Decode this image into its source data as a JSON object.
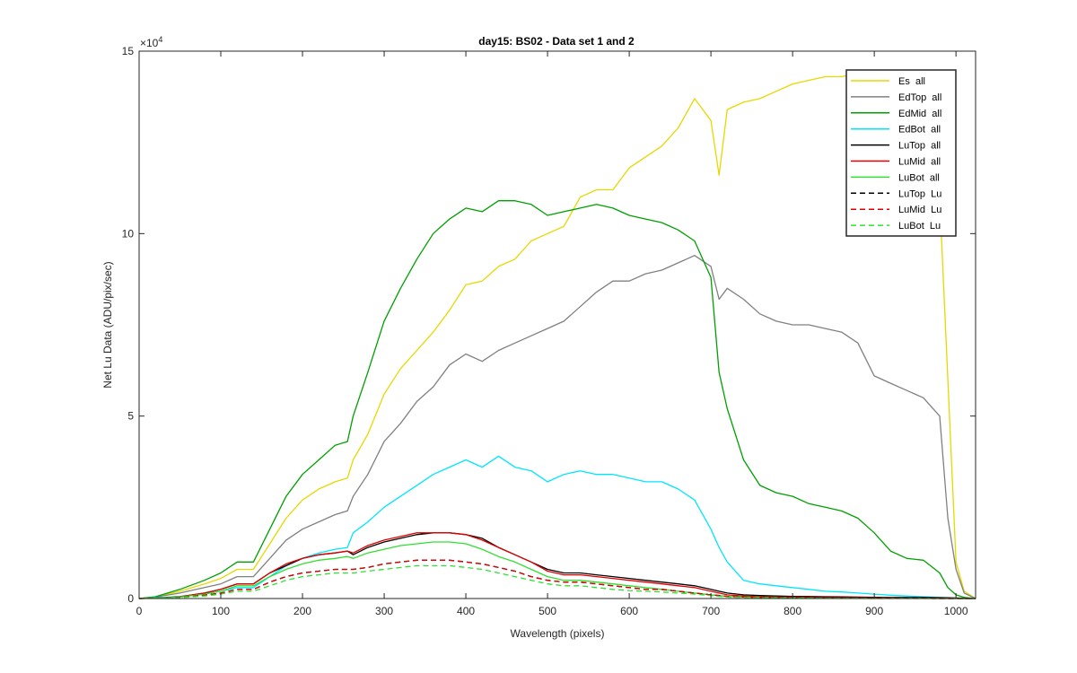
{
  "chart_data": {
    "type": "line",
    "title": "day15: BS02 - Data set 1 and 2",
    "xlabel": "Wavelength (pixels)",
    "ylabel": "Net Lu Data (ADU/pix/sec)",
    "y_exponent_label": "×10",
    "y_exponent_power": "4",
    "xlim": [
      0,
      1024
    ],
    "ylim": [
      0,
      150000
    ],
    "xticks": [
      0,
      100,
      200,
      300,
      400,
      500,
      600,
      700,
      800,
      900,
      1000
    ],
    "yticks": [
      0,
      50000,
      100000,
      150000
    ],
    "ytick_labels": [
      "0",
      "5",
      "10",
      "15"
    ],
    "legend_position": "top-right",
    "grid": false,
    "x": [
      0,
      20,
      50,
      80,
      100,
      120,
      140,
      160,
      180,
      200,
      220,
      240,
      255,
      262,
      280,
      300,
      320,
      340,
      360,
      380,
      400,
      420,
      440,
      460,
      480,
      500,
      520,
      540,
      560,
      580,
      600,
      620,
      640,
      660,
      680,
      700,
      710,
      720,
      740,
      760,
      780,
      800,
      820,
      840,
      860,
      880,
      900,
      920,
      940,
      960,
      980,
      990,
      1000,
      1010,
      1024
    ],
    "series": [
      {
        "name": "Es  all",
        "color": "#e6d800",
        "dash": "solid",
        "values": [
          0,
          500,
          2000,
          4000,
          5500,
          8000,
          8000,
          15000,
          22000,
          27000,
          30000,
          32000,
          33000,
          38000,
          45000,
          56000,
          63000,
          68000,
          73000,
          79000,
          86000,
          87000,
          91000,
          93000,
          98000,
          100000,
          102000,
          110000,
          112000,
          112000,
          118000,
          121000,
          124000,
          129000,
          137000,
          131000,
          116000,
          134000,
          136000,
          137000,
          139000,
          141000,
          142000,
          143000,
          143000,
          144000,
          142000,
          141000,
          140000,
          139000,
          110000,
          60000,
          10000,
          2000,
          0
        ]
      },
      {
        "name": "EdTop  all",
        "color": "#808080",
        "dash": "solid",
        "values": [
          0,
          400,
          1500,
          3000,
          4000,
          6000,
          6000,
          11000,
          16000,
          19000,
          21000,
          23000,
          24000,
          28000,
          34000,
          43000,
          48000,
          54000,
          58000,
          64000,
          67000,
          65000,
          68000,
          70000,
          72000,
          74000,
          76000,
          80000,
          84000,
          87000,
          87000,
          89000,
          90000,
          92000,
          94000,
          91000,
          82000,
          85000,
          82000,
          78000,
          76000,
          75000,
          75000,
          74000,
          73000,
          70000,
          61000,
          59000,
          57000,
          55000,
          50000,
          22000,
          8000,
          1500,
          0
        ]
      },
      {
        "name": "EdMid  all",
        "color": "#00a000",
        "dash": "solid",
        "values": [
          0,
          500,
          2500,
          5000,
          7000,
          10000,
          10000,
          19000,
          28000,
          34000,
          38000,
          42000,
          43000,
          50000,
          62000,
          76000,
          85000,
          93000,
          100000,
          104000,
          107000,
          106000,
          109000,
          109000,
          108000,
          105000,
          106000,
          107000,
          108000,
          107000,
          105000,
          104000,
          103000,
          101000,
          98000,
          88000,
          62000,
          52000,
          38000,
          31000,
          29000,
          28000,
          26000,
          25000,
          24000,
          22000,
          18000,
          13000,
          11000,
          10500,
          7000,
          3000,
          1000,
          300,
          0
        ]
      },
      {
        "name": "EdBot  all",
        "color": "#00e5ff",
        "dash": "solid",
        "values": [
          0,
          200,
          600,
          1300,
          2000,
          3000,
          3000,
          6000,
          9000,
          11000,
          12500,
          13500,
          14000,
          18000,
          21000,
          25000,
          28000,
          31000,
          34000,
          36000,
          38000,
          36000,
          39000,
          36000,
          35000,
          32000,
          34000,
          35000,
          34000,
          34000,
          33000,
          32000,
          32000,
          30000,
          27000,
          19000,
          14000,
          10000,
          5000,
          4000,
          3500,
          3000,
          2500,
          2000,
          1800,
          1500,
          1200,
          900,
          700,
          500,
          300,
          200,
          100,
          0,
          0
        ]
      },
      {
        "name": "LuTop  all",
        "color": "#000000",
        "dash": "solid",
        "values": [
          0,
          100,
          500,
          1500,
          2500,
          4000,
          4000,
          7000,
          9000,
          11000,
          12000,
          12500,
          13000,
          12000,
          14000,
          15500,
          16500,
          17500,
          18000,
          18000,
          17500,
          16500,
          14000,
          12000,
          10000,
          8000,
          7000,
          7000,
          6500,
          6000,
          5500,
          5000,
          4500,
          4000,
          3500,
          2500,
          2000,
          1500,
          1000,
          800,
          700,
          600,
          550,
          500,
          450,
          400,
          350,
          300,
          300,
          300,
          250,
          200,
          150,
          100,
          0
        ]
      },
      {
        "name": "LuMid  all",
        "color": "#e00000",
        "dash": "solid",
        "values": [
          0,
          100,
          500,
          1500,
          2500,
          4000,
          4000,
          7000,
          9500,
          11000,
          12000,
          12500,
          13000,
          12500,
          14500,
          16000,
          17000,
          18000,
          18000,
          18000,
          17500,
          16000,
          14000,
          12000,
          10000,
          7500,
          6500,
          6500,
          6000,
          5500,
          5000,
          4500,
          4000,
          3500,
          3000,
          2000,
          1500,
          1000,
          700,
          500,
          400,
          350,
          300,
          250,
          200,
          200,
          150,
          150,
          100,
          100,
          100,
          50,
          50,
          0,
          0
        ]
      },
      {
        "name": "LuBot  all",
        "color": "#30e030",
        "dash": "solid",
        "values": [
          0,
          100,
          400,
          1200,
          2000,
          3500,
          3500,
          6000,
          8000,
          9500,
          10500,
          11000,
          11500,
          11000,
          12500,
          13500,
          14500,
          15000,
          15500,
          15500,
          15000,
          13500,
          11500,
          10000,
          8000,
          6000,
          5000,
          5000,
          4500,
          4000,
          3500,
          3000,
          2500,
          2000,
          1500,
          1000,
          800,
          600,
          400,
          300,
          250,
          200,
          150,
          100,
          100,
          100,
          50,
          50,
          50,
          50,
          0,
          0,
          0,
          0,
          0
        ]
      },
      {
        "name": "LuTop  Lu",
        "color": "#000000",
        "dash": "dashed",
        "values": [
          0,
          80,
          300,
          900,
          1500,
          2500,
          2500,
          4500,
          6000,
          7000,
          7500,
          8000,
          8000,
          8000,
          8500,
          9500,
          10000,
          10500,
          10500,
          10500,
          10000,
          9500,
          8500,
          7500,
          6000,
          5000,
          4500,
          4500,
          4000,
          3500,
          3000,
          2500,
          2500,
          2000,
          1500,
          1000,
          800,
          600,
          400,
          300,
          250,
          200,
          150,
          100,
          100,
          100,
          50,
          50,
          50,
          50,
          0,
          0,
          0,
          0,
          0
        ]
      },
      {
        "name": "LuMid  Lu",
        "color": "#e00000",
        "dash": "dashed",
        "values": [
          0,
          80,
          300,
          900,
          1500,
          2500,
          2500,
          4500,
          6000,
          7000,
          7500,
          8000,
          8000,
          8000,
          8500,
          9500,
          10000,
          10500,
          10500,
          10500,
          10000,
          9500,
          8500,
          7500,
          6000,
          5000,
          4500,
          4500,
          4000,
          3500,
          3000,
          2500,
          2500,
          2000,
          1500,
          1000,
          800,
          600,
          400,
          300,
          250,
          200,
          150,
          100,
          100,
          100,
          50,
          50,
          50,
          50,
          0,
          0,
          0,
          0,
          0
        ]
      },
      {
        "name": "LuBot  Lu",
        "color": "#30e030",
        "dash": "dashed",
        "values": [
          0,
          60,
          250,
          700,
          1200,
          2000,
          2000,
          3500,
          5000,
          6000,
          6500,
          7000,
          7000,
          7000,
          7500,
          8000,
          8500,
          9000,
          9000,
          9000,
          8500,
          8000,
          7000,
          6000,
          5000,
          4000,
          3500,
          3500,
          3000,
          2500,
          2200,
          2000,
          1800,
          1500,
          1200,
          800,
          600,
          400,
          300,
          200,
          150,
          100,
          100,
          50,
          50,
          50,
          0,
          0,
          0,
          0,
          0,
          0,
          0,
          0,
          0
        ]
      }
    ]
  }
}
